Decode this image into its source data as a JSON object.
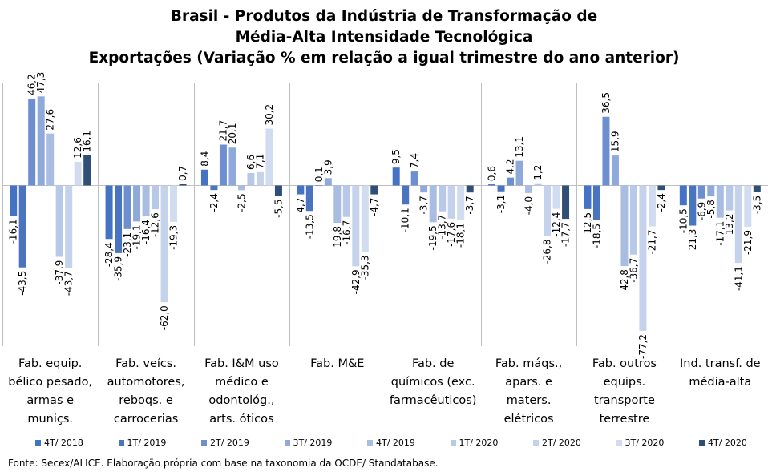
{
  "chart_data": {
    "type": "bar",
    "title": [
      "Brasil - Produtos da Indústria de Transformação de",
      "Média-Alta Intensidade Tecnológica",
      "Exportações (Variação % em relação a igual trimestre do ano anterior)"
    ],
    "categories": [
      [
        "Fab. equip.",
        "bélico pesado,",
        "armas e",
        "muniçs."
      ],
      [
        "Fab. veícs.",
        "automotores,",
        "reboqs. e",
        "carrocerias"
      ],
      [
        "Fab. I&M uso",
        "médico e",
        "odontológ.,",
        "arts. óticos"
      ],
      [
        "Fab. M&E"
      ],
      [
        "Fab. de",
        "químicos (exc.",
        "farmacêuticos)"
      ],
      [
        "Fab. máqs.,",
        "apars. e",
        "maters.",
        "elétricos"
      ],
      [
        "Fab. outros",
        "equips.",
        "transporte",
        "terrestre"
      ],
      [
        "Ind. transf. de",
        "média-alta"
      ]
    ],
    "series": [
      {
        "name": "4T/ 2018",
        "color": "#4472c4",
        "values": [
          -16.1,
          -28.4,
          8.4,
          -4.7,
          9.5,
          0.6,
          -12.5,
          -10.5
        ]
      },
      {
        "name": "1T/ 2019",
        "color": "#4a74bd",
        "values": [
          -43.5,
          -35.9,
          -2.4,
          -13.5,
          -10.1,
          -3.1,
          -18.5,
          -21.3
        ]
      },
      {
        "name": "2T/ 2019",
        "color": "#6d8fcf",
        "values": [
          46.2,
          -23.1,
          21.7,
          0.1,
          7.4,
          4.2,
          36.5,
          -6.9
        ]
      },
      {
        "name": "3T/ 2019",
        "color": "#8ea9da",
        "values": [
          47.3,
          -19.1,
          20.1,
          3.9,
          -3.7,
          13.1,
          15.9,
          -5.8
        ]
      },
      {
        "name": "4T/ 2019",
        "color": "#a9bde3",
        "values": [
          27.6,
          -16.4,
          -2.5,
          -19.8,
          -19.5,
          -4.0,
          -42.8,
          -17.1
        ]
      },
      {
        "name": "1T/ 2020",
        "color": "#b8c8e8",
        "values": [
          -37.9,
          -12.6,
          6.6,
          -16.7,
          -13.7,
          1.2,
          -36.7,
          -13.2
        ]
      },
      {
        "name": "2T/ 2020",
        "color": "#c5d2ec",
        "values": [
          -43.7,
          -62.0,
          7.1,
          -42.9,
          -17.6,
          -26.8,
          -77.2,
          -41.1
        ]
      },
      {
        "name": "3T/ 2020",
        "color": "#d2dcf0",
        "values": [
          12.6,
          -19.3,
          30.2,
          -35.3,
          -18.1,
          -12.4,
          -21.7,
          -21.9
        ]
      },
      {
        "name": "4T/ 2020",
        "color": "#2f4f77",
        "values": [
          16.1,
          0.7,
          -5.5,
          -4.7,
          -3.7,
          -17.7,
          -2.4,
          -3.5
        ]
      }
    ],
    "xlabel": "",
    "ylabel": "",
    "ylim": [
      -80,
      50
    ],
    "grid": false,
    "legend_position": "bottom"
  },
  "footer": "Fonte: Secex/ALICE. Elaboração própria  com base na taxonomia da OCDE/ Standatabase."
}
